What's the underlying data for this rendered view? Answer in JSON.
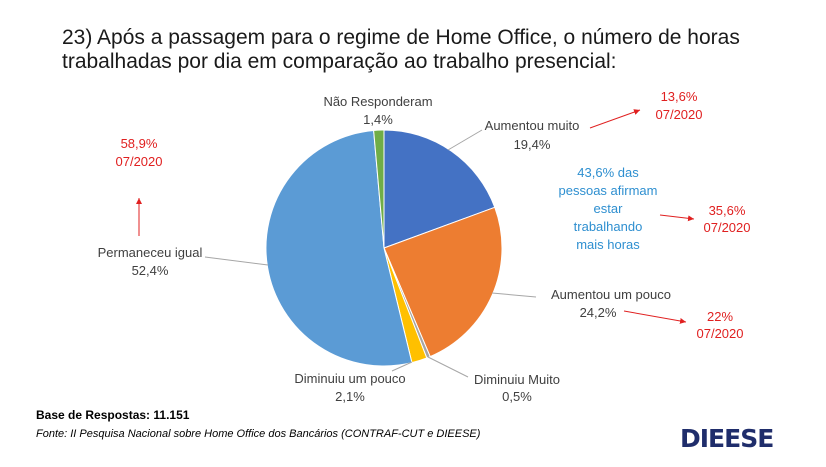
{
  "title": {
    "line1": "23) Após a passagem para o regime de Home Office, o número de horas",
    "line2": "trabalhadas por dia em comparação ao trabalho presencial:"
  },
  "chart_data": {
    "type": "pie",
    "slices": [
      {
        "name": "Aumentou muito",
        "value": 19.4,
        "label": "19,4%",
        "color": "#4472c4"
      },
      {
        "name": "Aumentou um pouco",
        "value": 24.2,
        "label": "24,2%",
        "color": "#ed7d31"
      },
      {
        "name": "Diminuiu Muito",
        "value": 0.5,
        "label": "0,5%",
        "color": "#a5a5a5"
      },
      {
        "name": "Diminuiu um pouco",
        "value": 2.1,
        "label": "2,1%",
        "color": "#ffc000"
      },
      {
        "name": "Permaneceu igual",
        "value": 52.4,
        "label": "52,4%",
        "color": "#5b9bd5"
      },
      {
        "name": "Não Responderam",
        "value": 1.4,
        "label": "1,4%",
        "color": "#70ad47"
      }
    ],
    "comparisons": [
      {
        "value": "13,6%",
        "period": "07/2020"
      },
      {
        "value": "35,6%",
        "period": "07/2020"
      },
      {
        "value": "22%",
        "period": "07/2020"
      },
      {
        "value": "58,9%",
        "period": "07/2020"
      }
    ],
    "note": [
      "43,6% das",
      "pessoas afirmam",
      "estar",
      "trabalhando",
      "mais horas"
    ]
  },
  "footer": {
    "base": "Base de Respostas: 11.151",
    "source": "Fonte: II Pesquisa Nacional sobre Home Office dos Bancários (CONTRAF-CUT e DIEESE)",
    "logo": "DIEESE"
  },
  "colors": {
    "red": "#e02020",
    "blue_note": "#2e8fd0",
    "logo": "#1f2d6b"
  }
}
